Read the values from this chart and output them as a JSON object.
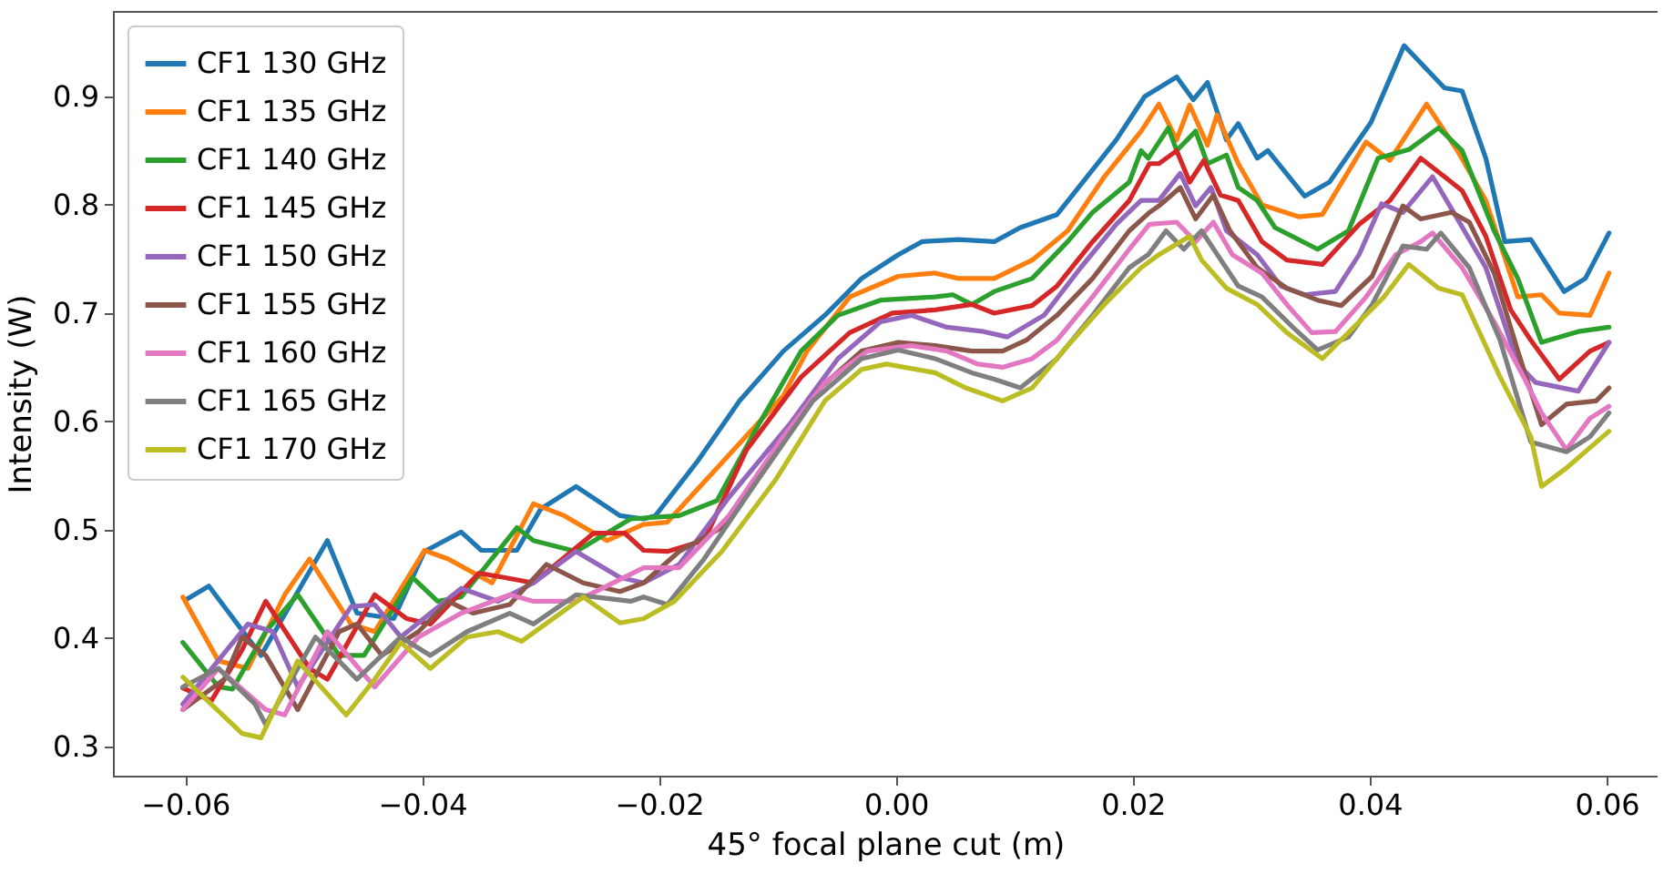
{
  "chart_data": {
    "type": "line",
    "xlabel": "45° focal plane cut (m)",
    "ylabel": "Intensity (W)",
    "xlim": [
      -0.0661,
      0.0643
    ],
    "ylim": [
      0.273,
      0.979
    ],
    "xticks": [
      {
        "value": -0.06,
        "label": "−0.06"
      },
      {
        "value": -0.04,
        "label": "−0.04"
      },
      {
        "value": -0.02,
        "label": "−0.02"
      },
      {
        "value": 0,
        "label": "0.00"
      },
      {
        "value": 0.02,
        "label": "0.02"
      },
      {
        "value": 0.04,
        "label": "0.04"
      },
      {
        "value": 0.06,
        "label": "0.06"
      }
    ],
    "yticks": [
      0.3,
      0.4,
      0.5,
      0.6,
      0.7,
      0.8,
      0.9
    ],
    "grid": false,
    "legend": "top left",
    "line_style": "solid",
    "marker": "none",
    "series": [
      {
        "name": "CF1 130 GHz",
        "color": "#1f77b4",
        "x": [
          -0.06,
          -0.058,
          -0.0536,
          -0.048,
          -0.0455,
          -0.0424,
          -0.0398,
          -0.0367,
          -0.035,
          -0.032,
          -0.03,
          -0.027,
          -0.0233,
          -0.0213,
          -0.0203,
          -0.0167,
          -0.0132,
          -0.0095,
          -0.006,
          -0.0029,
          0.0002,
          0.0022,
          0.0053,
          0.0083,
          0.0105,
          0.0136,
          0.016,
          0.0186,
          0.021,
          0.0237,
          0.0251,
          0.0263,
          0.0279,
          0.0289,
          0.0305,
          0.0314,
          0.0345,
          0.0366,
          0.0401,
          0.0429,
          0.0463,
          0.0478,
          0.0498,
          0.0514,
          0.0536,
          0.0564,
          0.0582,
          0.0602
        ],
        "values": [
          0.435,
          0.448,
          0.384,
          0.49,
          0.423,
          0.418,
          0.48,
          0.498,
          0.481,
          0.481,
          0.519,
          0.54,
          0.513,
          0.51,
          0.513,
          0.564,
          0.619,
          0.665,
          0.698,
          0.732,
          0.754,
          0.766,
          0.768,
          0.766,
          0.779,
          0.791,
          0.824,
          0.86,
          0.9,
          0.918,
          0.897,
          0.913,
          0.86,
          0.875,
          0.843,
          0.85,
          0.808,
          0.821,
          0.876,
          0.947,
          0.908,
          0.905,
          0.843,
          0.766,
          0.768,
          0.72,
          0.732,
          0.774
        ]
      },
      {
        "name": "CF1 135 GHz",
        "color": "#ff7f0e",
        "x": [
          -0.0602,
          -0.0572,
          -0.0547,
          -0.0516,
          -0.0495,
          -0.046,
          -0.044,
          -0.0398,
          -0.0378,
          -0.0341,
          -0.0306,
          -0.028,
          -0.0244,
          -0.0213,
          -0.0193,
          -0.0141,
          -0.0095,
          -0.0075,
          -0.0039,
          0.0002,
          0.0033,
          0.0053,
          0.0083,
          0.0115,
          0.0145,
          0.0176,
          0.0207,
          0.0222,
          0.0237,
          0.0248,
          0.0263,
          0.0271,
          0.0289,
          0.0309,
          0.034,
          0.036,
          0.0397,
          0.0417,
          0.0448,
          0.0474,
          0.0498,
          0.0525,
          0.0545,
          0.056,
          0.0586,
          0.0602
        ],
        "values": [
          0.438,
          0.379,
          0.372,
          0.44,
          0.473,
          0.413,
          0.406,
          0.481,
          0.473,
          0.451,
          0.524,
          0.513,
          0.49,
          0.505,
          0.507,
          0.569,
          0.624,
          0.665,
          0.715,
          0.734,
          0.737,
          0.732,
          0.732,
          0.749,
          0.776,
          0.826,
          0.868,
          0.893,
          0.86,
          0.892,
          0.855,
          0.883,
          0.838,
          0.8,
          0.789,
          0.791,
          0.858,
          0.841,
          0.893,
          0.85,
          0.804,
          0.715,
          0.717,
          0.7,
          0.698,
          0.737
        ]
      },
      {
        "name": "CF1 140 GHz",
        "color": "#2ca02c",
        "x": [
          -0.0602,
          -0.0572,
          -0.056,
          -0.0532,
          -0.0505,
          -0.047,
          -0.0449,
          -0.0408,
          -0.0387,
          -0.0367,
          -0.032,
          -0.0306,
          -0.027,
          -0.0224,
          -0.0183,
          -0.0151,
          -0.0116,
          -0.008,
          -0.0049,
          -0.0013,
          0.0033,
          0.0048,
          0.0064,
          0.0083,
          0.0115,
          0.0145,
          0.0166,
          0.0197,
          0.0207,
          0.0213,
          0.023,
          0.0237,
          0.0253,
          0.0263,
          0.0279,
          0.0289,
          0.0305,
          0.032,
          0.0356,
          0.0382,
          0.0407,
          0.0433,
          0.0458,
          0.0478,
          0.0505,
          0.0525,
          0.0545,
          0.0576,
          0.0602
        ],
        "values": [
          0.396,
          0.355,
          0.353,
          0.406,
          0.44,
          0.384,
          0.384,
          0.456,
          0.434,
          0.438,
          0.502,
          0.49,
          0.48,
          0.51,
          0.513,
          0.527,
          0.597,
          0.665,
          0.698,
          0.712,
          0.715,
          0.717,
          0.708,
          0.72,
          0.732,
          0.766,
          0.793,
          0.821,
          0.85,
          0.843,
          0.871,
          0.85,
          0.868,
          0.838,
          0.846,
          0.816,
          0.804,
          0.779,
          0.759,
          0.776,
          0.843,
          0.851,
          0.871,
          0.85,
          0.776,
          0.732,
          0.673,
          0.683,
          0.687
        ]
      },
      {
        "name": "CF1 145 GHz",
        "color": "#d62728",
        "x": [
          -0.0602,
          -0.0578,
          -0.0552,
          -0.0532,
          -0.0495,
          -0.048,
          -0.044,
          -0.0413,
          -0.0393,
          -0.0352,
          -0.0331,
          -0.0306,
          -0.0255,
          -0.0229,
          -0.0213,
          -0.0193,
          -0.0162,
          -0.0126,
          -0.008,
          -0.0039,
          -0.0003,
          0.0033,
          0.0064,
          0.0083,
          0.0115,
          0.0136,
          0.0166,
          0.0197,
          0.0214,
          0.0222,
          0.0237,
          0.0248,
          0.026,
          0.0274,
          0.0289,
          0.0309,
          0.033,
          0.036,
          0.0391,
          0.0417,
          0.0443,
          0.0463,
          0.0478,
          0.0498,
          0.0519,
          0.0536,
          0.056,
          0.0586,
          0.0602
        ],
        "values": [
          0.354,
          0.342,
          0.389,
          0.434,
          0.372,
          0.362,
          0.44,
          0.418,
          0.413,
          0.46,
          0.456,
          0.451,
          0.497,
          0.497,
          0.481,
          0.48,
          0.49,
          0.574,
          0.641,
          0.682,
          0.7,
          0.703,
          0.708,
          0.7,
          0.707,
          0.725,
          0.766,
          0.804,
          0.838,
          0.838,
          0.85,
          0.821,
          0.841,
          0.809,
          0.804,
          0.766,
          0.749,
          0.745,
          0.782,
          0.804,
          0.843,
          0.826,
          0.813,
          0.771,
          0.703,
          0.675,
          0.639,
          0.665,
          0.673
        ]
      },
      {
        "name": "CF1 150 GHz",
        "color": "#9467bd",
        "x": [
          -0.0602,
          -0.0547,
          -0.0526,
          -0.0505,
          -0.046,
          -0.044,
          -0.0418,
          -0.0367,
          -0.0336,
          -0.0306,
          -0.027,
          -0.0233,
          -0.0213,
          -0.0183,
          -0.0141,
          -0.009,
          -0.0049,
          -0.0013,
          0.0013,
          0.0043,
          0.0074,
          0.0094,
          0.0125,
          0.0156,
          0.0186,
          0.0207,
          0.0222,
          0.024,
          0.0253,
          0.0266,
          0.0279,
          0.0305,
          0.0325,
          0.0345,
          0.0371,
          0.0391,
          0.041,
          0.0428,
          0.0453,
          0.0474,
          0.0498,
          0.0525,
          0.054,
          0.0576,
          0.0602
        ],
        "values": [
          0.339,
          0.413,
          0.406,
          0.355,
          0.429,
          0.431,
          0.401,
          0.446,
          0.434,
          0.451,
          0.48,
          0.456,
          0.451,
          0.468,
          0.53,
          0.597,
          0.658,
          0.692,
          0.698,
          0.687,
          0.683,
          0.678,
          0.698,
          0.742,
          0.782,
          0.804,
          0.804,
          0.829,
          0.799,
          0.816,
          0.776,
          0.754,
          0.725,
          0.717,
          0.72,
          0.754,
          0.801,
          0.793,
          0.826,
          0.787,
          0.742,
          0.653,
          0.636,
          0.628,
          0.673
        ]
      },
      {
        "name": "CF1 155 GHz",
        "color": "#8c564b",
        "x": [
          -0.0602,
          -0.0567,
          -0.0552,
          -0.0532,
          -0.0505,
          -0.047,
          -0.0455,
          -0.0434,
          -0.0403,
          -0.0378,
          -0.0357,
          -0.0326,
          -0.0295,
          -0.0264,
          -0.0233,
          -0.0213,
          -0.0183,
          -0.0147,
          -0.0106,
          -0.0064,
          -0.0029,
          0.0002,
          0.0033,
          0.0064,
          0.009,
          0.011,
          0.0136,
          0.0166,
          0.0197,
          0.0214,
          0.0222,
          0.024,
          0.0253,
          0.0268,
          0.0282,
          0.0305,
          0.033,
          0.0356,
          0.0376,
          0.0402,
          0.0428,
          0.0443,
          0.0469,
          0.0484,
          0.0505,
          0.0525,
          0.0545,
          0.0566,
          0.0591,
          0.0602
        ],
        "values": [
          0.334,
          0.362,
          0.401,
          0.384,
          0.334,
          0.406,
          0.413,
          0.384,
          0.406,
          0.434,
          0.423,
          0.431,
          0.468,
          0.451,
          0.443,
          0.451,
          0.48,
          0.502,
          0.564,
          0.631,
          0.665,
          0.673,
          0.67,
          0.665,
          0.665,
          0.675,
          0.698,
          0.732,
          0.776,
          0.793,
          0.799,
          0.816,
          0.787,
          0.809,
          0.776,
          0.742,
          0.723,
          0.712,
          0.707,
          0.734,
          0.799,
          0.787,
          0.793,
          0.784,
          0.737,
          0.665,
          0.597,
          0.616,
          0.619,
          0.631
        ]
      },
      {
        "name": "CF1 160 GHz",
        "color": "#e377c2",
        "x": [
          -0.0602,
          -0.0572,
          -0.0532,
          -0.0516,
          -0.048,
          -0.044,
          -0.0403,
          -0.0367,
          -0.0326,
          -0.0306,
          -0.027,
          -0.0213,
          -0.0183,
          -0.0141,
          -0.0095,
          -0.006,
          -0.0024,
          0.0013,
          0.0043,
          0.0069,
          0.009,
          0.0115,
          0.0136,
          0.0166,
          0.0197,
          0.0214,
          0.0237,
          0.0253,
          0.0268,
          0.0284,
          0.0309,
          0.033,
          0.0351,
          0.0371,
          0.0397,
          0.0422,
          0.0443,
          0.0453,
          0.0478,
          0.0505,
          0.053,
          0.0545,
          0.0566,
          0.0586,
          0.0602
        ],
        "values": [
          0.334,
          0.372,
          0.334,
          0.329,
          0.406,
          0.355,
          0.401,
          0.423,
          0.44,
          0.434,
          0.434,
          0.465,
          0.465,
          0.513,
          0.586,
          0.636,
          0.665,
          0.67,
          0.665,
          0.653,
          0.65,
          0.658,
          0.675,
          0.715,
          0.759,
          0.782,
          0.784,
          0.766,
          0.784,
          0.754,
          0.737,
          0.708,
          0.682,
          0.683,
          0.715,
          0.754,
          0.766,
          0.774,
          0.742,
          0.692,
          0.641,
          0.608,
          0.574,
          0.603,
          0.614
        ]
      },
      {
        "name": "CF1 165 GHz",
        "color": "#7f7f7f",
        "x": [
          -0.0602,
          -0.0572,
          -0.0541,
          -0.0532,
          -0.049,
          -0.0455,
          -0.0418,
          -0.0393,
          -0.0362,
          -0.0326,
          -0.0306,
          -0.027,
          -0.0224,
          -0.0213,
          -0.0193,
          -0.0162,
          -0.0116,
          -0.007,
          -0.0029,
          0.0002,
          0.0033,
          0.0064,
          0.0083,
          0.0105,
          0.0136,
          0.0166,
          0.0197,
          0.0213,
          0.0228,
          0.0243,
          0.0258,
          0.0289,
          0.0309,
          0.0335,
          0.0356,
          0.0382,
          0.0402,
          0.0428,
          0.0448,
          0.046,
          0.0484,
          0.051,
          0.0536,
          0.0566,
          0.0586,
          0.0602
        ],
        "values": [
          0.355,
          0.372,
          0.339,
          0.32,
          0.401,
          0.362,
          0.401,
          0.384,
          0.406,
          0.423,
          0.413,
          0.44,
          0.434,
          0.438,
          0.431,
          0.473,
          0.547,
          0.619,
          0.658,
          0.666,
          0.658,
          0.645,
          0.639,
          0.631,
          0.658,
          0.698,
          0.742,
          0.754,
          0.776,
          0.759,
          0.776,
          0.725,
          0.715,
          0.687,
          0.666,
          0.678,
          0.708,
          0.762,
          0.759,
          0.774,
          0.742,
          0.675,
          0.581,
          0.572,
          0.586,
          0.608
        ]
      },
      {
        "name": "CF1 170 GHz",
        "color": "#bcbd22",
        "x": [
          -0.0602,
          -0.0552,
          -0.0536,
          -0.0505,
          -0.0464,
          -0.044,
          -0.0418,
          -0.0393,
          -0.0362,
          -0.0336,
          -0.0316,
          -0.0264,
          -0.0233,
          -0.0213,
          -0.0187,
          -0.0147,
          -0.0101,
          -0.006,
          -0.0029,
          -0.0008,
          0.0033,
          0.0059,
          0.009,
          0.0115,
          0.0145,
          0.0176,
          0.0207,
          0.0222,
          0.0248,
          0.0258,
          0.0279,
          0.0305,
          0.033,
          0.036,
          0.0391,
          0.0412,
          0.0433,
          0.0458,
          0.0478,
          0.051,
          0.0536,
          0.0545,
          0.0566,
          0.0602
        ],
        "values": [
          0.364,
          0.312,
          0.308,
          0.379,
          0.329,
          0.362,
          0.396,
          0.372,
          0.401,
          0.406,
          0.397,
          0.438,
          0.414,
          0.418,
          0.434,
          0.48,
          0.547,
          0.619,
          0.648,
          0.653,
          0.645,
          0.631,
          0.619,
          0.631,
          0.67,
          0.708,
          0.742,
          0.754,
          0.771,
          0.749,
          0.723,
          0.708,
          0.682,
          0.658,
          0.692,
          0.715,
          0.745,
          0.723,
          0.717,
          0.641,
          0.586,
          0.54,
          0.557,
          0.591
        ]
      }
    ]
  }
}
